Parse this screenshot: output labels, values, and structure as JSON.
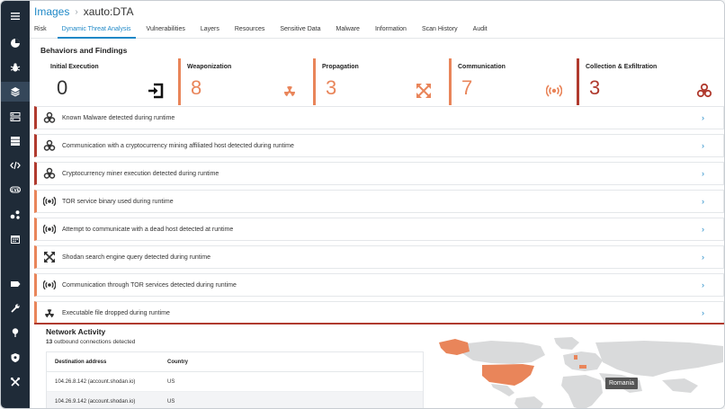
{
  "breadcrumb": {
    "root": "Images",
    "current": "xauto:DTA"
  },
  "tabs": [
    {
      "label": "Risk",
      "active": false
    },
    {
      "label": "Dynamic Threat Analysis",
      "active": true
    },
    {
      "label": "Vulnerabilities",
      "active": false
    },
    {
      "label": "Layers",
      "active": false
    },
    {
      "label": "Resources",
      "active": false
    },
    {
      "label": "Sensitive Data",
      "active": false
    },
    {
      "label": "Malware",
      "active": false
    },
    {
      "label": "Information",
      "active": false
    },
    {
      "label": "Scan History",
      "active": false
    },
    {
      "label": "Audit",
      "active": false
    }
  ],
  "behaviors": {
    "title": "Behaviors and Findings",
    "stats": [
      {
        "label": "Initial Execution",
        "value": "0",
        "icon": "entry-arrow-icon",
        "color": "#222222"
      },
      {
        "label": "Weaponization",
        "value": "8",
        "icon": "radiation-icon",
        "color": "#e9855a"
      },
      {
        "label": "Propagation",
        "value": "3",
        "icon": "expand-arrows-icon",
        "color": "#e9855a"
      },
      {
        "label": "Communication",
        "value": "7",
        "icon": "broadcast-icon",
        "color": "#e9855a"
      },
      {
        "label": "Collection & Exfiltration",
        "value": "3",
        "icon": "biohazard-icon",
        "color": "#b03a2e"
      }
    ]
  },
  "findings": [
    {
      "text": "Known Malware detected during runtime",
      "icon": "biohazard-icon",
      "severity": "high"
    },
    {
      "text": "Communication with a cryptocurrency mining affiliated host detected during runtime",
      "icon": "biohazard-icon",
      "severity": "high"
    },
    {
      "text": "Cryptocurrency miner execution detected during runtime",
      "icon": "biohazard-icon",
      "severity": "high"
    },
    {
      "text": "TOR service binary used during runtime",
      "icon": "broadcast-icon",
      "severity": "medium"
    },
    {
      "text": "Attempt to communicate with a dead host detected at runtime",
      "icon": "broadcast-icon",
      "severity": "medium"
    },
    {
      "text": "Shodan search engine query detected during runtime",
      "icon": "expand-arrows-icon",
      "severity": "medium"
    },
    {
      "text": "Communication through TOR services detected during runtime",
      "icon": "broadcast-icon",
      "severity": "medium"
    },
    {
      "text": "Executable file dropped during runtime",
      "icon": "radiation-icon",
      "severity": "medium"
    }
  ],
  "network": {
    "title": "Network Activity",
    "count": "13",
    "count_suffix": "outbound connections detected",
    "columns": {
      "address": "Destination address",
      "country": "Country"
    },
    "rows": [
      {
        "address": "104.26.8.142 (account.shodan.io)",
        "country": "US"
      },
      {
        "address": "104.26.9.142 (account.shodan.io)",
        "country": "US"
      }
    ],
    "map_tooltip": "Romania"
  },
  "sidebar": {
    "items": [
      {
        "icon": "menu-icon"
      },
      {
        "icon": "dashboard-icon"
      },
      {
        "icon": "bug-icon"
      },
      {
        "icon": "layers-icon",
        "active": true
      },
      {
        "icon": "network-icon"
      },
      {
        "icon": "server-icon"
      },
      {
        "icon": "code-icon"
      },
      {
        "icon": "cvss-icon"
      },
      {
        "icon": "nodes-icon"
      },
      {
        "icon": "calendar-icon"
      },
      {
        "icon": "tag-icon"
      },
      {
        "icon": "wrench-icon"
      },
      {
        "icon": "pin-icon"
      },
      {
        "icon": "shield-icon"
      },
      {
        "icon": "tools-icon"
      }
    ]
  },
  "colors": {
    "accent": "#1e88c7",
    "high": "#b03a2e",
    "medium": "#e9855a",
    "sidebar": "#1f2b38"
  }
}
